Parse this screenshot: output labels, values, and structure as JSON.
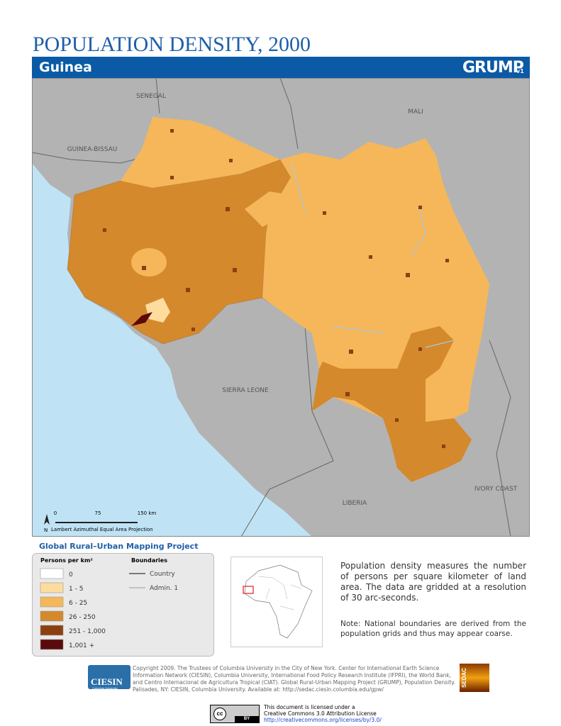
{
  "header": {
    "title": "POPULATION DENSITY, 2000",
    "country": "Guinea",
    "logo": "GRUMP",
    "logo_version": "v1"
  },
  "map": {
    "labels": [
      "SENEGAL",
      "MALI",
      "GUINEA-BISSAU",
      "SIERRA LEONE",
      "LIBERIA",
      "IVORY COAST"
    ],
    "scale": {
      "ticks": [
        "0",
        "75",
        "150 km"
      ],
      "north": "N",
      "projection": "Lambert Azimuthal Equal Area Projection"
    }
  },
  "legend": {
    "project": "Global Rural–Urban Mapping Project",
    "heading": "Persons per km²",
    "classes": [
      {
        "label": "0",
        "color": "#ffffff"
      },
      {
        "label": "1 - 5",
        "color": "#fddc9e"
      },
      {
        "label": "6 - 25",
        "color": "#f5b75a"
      },
      {
        "label": "26 - 250",
        "color": "#d4892c"
      },
      {
        "label": "251 - 1,000",
        "color": "#8c4010"
      },
      {
        "label": "1,001 +",
        "color": "#5a0a0a"
      }
    ],
    "boundaries_heading": "Boundaries",
    "boundaries": [
      "Country",
      "Admin. 1"
    ]
  },
  "description": "Population density measures the number of persons per square kilometer of land area. The data are gridded at a resolution of 30 arc-seconds.",
  "note": "Note: National boundaries are derived from the population grids and thus may appear coarse.",
  "footer": {
    "copyright": "Copyright 2009. The Trustees of Columbia University in the City of New York. Center for International Earth Science Information Network (CIESIN), Columbia University, International Food Policy Research Institute (IFPRI), the World Bank, and Centro Internacional de Agricultura Tropical (CIAT). Global Rural-Urban Mapping Project (GRUMP), Population Density. Palisades, NY: CIESIN, Columbia University. Available at: http://sedac.ciesin.columbia.edu/gpw/",
    "ciesin": "CIESIN",
    "ciesin_sub": "Columbia University",
    "sedac": "SEDAC",
    "license": [
      "This document is licensed under a",
      "Creative Commons 3.0 Attribution License",
      "http://creativecommons.org/licenses/by/3.0/"
    ],
    "cc": "cc",
    "by": "BY"
  }
}
